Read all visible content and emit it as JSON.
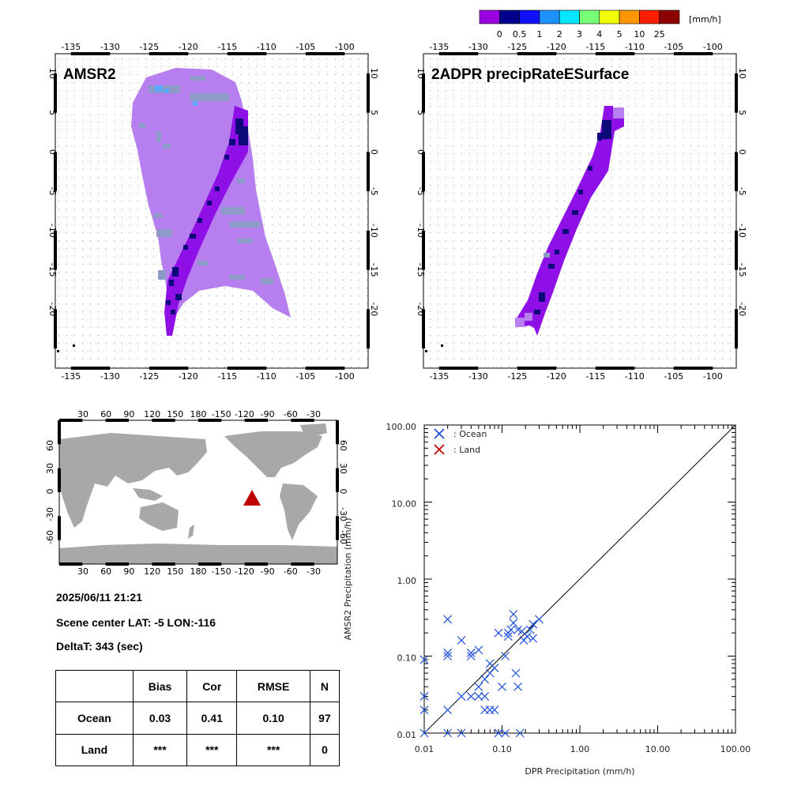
{
  "colorbar": {
    "unit": "[mm/h]",
    "labels": [
      "0",
      "0.5",
      "1",
      "2",
      "3",
      "4",
      "5",
      "10",
      "25"
    ],
    "colors": [
      "#9a00e0",
      "#00008c",
      "#1010ff",
      "#1e90ff",
      "#00e6ff",
      "#78ff78",
      "#f0ff00",
      "#ff9600",
      "#ff1e00",
      "#8c0000"
    ]
  },
  "maps": [
    {
      "title": "AMSR2",
      "lon_ticks": [
        "-135",
        "-130",
        "-125",
        "-120",
        "-115",
        "-110",
        "-105",
        "-100"
      ],
      "lat_ticks": [
        "10",
        "5",
        "0",
        "-5",
        "-10",
        "-15",
        "-20"
      ]
    },
    {
      "title": "2ADPR precipRateESurface",
      "lon_ticks": [
        "-135",
        "-130",
        "-125",
        "-120",
        "-115",
        "-110",
        "-105",
        "-100"
      ],
      "lat_ticks": [
        "10",
        "5",
        "0",
        "-5",
        "-10",
        "-15",
        "-20"
      ]
    }
  ],
  "world_map": {
    "top_ticks": [
      "30",
      "60",
      "90",
      "120",
      "150",
      "180",
      "-150",
      "-120",
      "-90",
      "-60",
      "-30"
    ],
    "lat_ticks": [
      "60",
      "30",
      "0",
      "-30",
      "-60"
    ],
    "marker_color": "#c00000"
  },
  "info": {
    "datetime": "2025/06/11 21:21",
    "scene_center": "Scene center LAT: -5   LON:-116",
    "delta_t": "DeltaT:  343 (sec)"
  },
  "stats_table": {
    "headers": [
      "",
      "Bias",
      "Cor",
      "RMSE",
      "N"
    ],
    "rows": [
      [
        "Ocean",
        "0.03",
        "0.41",
        "0.10",
        "97"
      ],
      [
        "Land",
        "***",
        "***",
        "***",
        "0"
      ]
    ]
  },
  "chart_data": {
    "type": "scatter",
    "xlabel": "DPR Precipitation (mm/h)",
    "ylabel": "AMSR2 Precipitation (mm/h)",
    "xscale": "log",
    "yscale": "log",
    "xlim": [
      0.01,
      100
    ],
    "ylim": [
      0.01,
      100
    ],
    "tick_labels": [
      "0.01",
      "0.10",
      "1.00",
      "10.00",
      "100.00"
    ],
    "legend_position": "top-left",
    "one_to_one_line": true,
    "series": [
      {
        "name": ": Ocean",
        "color": "#1e50dc",
        "marker": "x",
        "points": [
          [
            0.01,
            0.09
          ],
          [
            0.01,
            0.03
          ],
          [
            0.01,
            0.02
          ],
          [
            0.01,
            0.01
          ],
          [
            0.02,
            0.3
          ],
          [
            0.02,
            0.11
          ],
          [
            0.02,
            0.1
          ],
          [
            0.02,
            0.02
          ],
          [
            0.02,
            0.01
          ],
          [
            0.03,
            0.16
          ],
          [
            0.03,
            0.03
          ],
          [
            0.03,
            0.01
          ],
          [
            0.04,
            0.11
          ],
          [
            0.04,
            0.1
          ],
          [
            0.04,
            0.03
          ],
          [
            0.05,
            0.12
          ],
          [
            0.05,
            0.04
          ],
          [
            0.05,
            0.03
          ],
          [
            0.06,
            0.05
          ],
          [
            0.06,
            0.03
          ],
          [
            0.06,
            0.02
          ],
          [
            0.07,
            0.08
          ],
          [
            0.07,
            0.06
          ],
          [
            0.07,
            0.02
          ],
          [
            0.08,
            0.07
          ],
          [
            0.08,
            0.02
          ],
          [
            0.09,
            0.2
          ],
          [
            0.09,
            0.01
          ],
          [
            0.1,
            0.04
          ],
          [
            0.11,
            0.1
          ],
          [
            0.11,
            0.01
          ],
          [
            0.12,
            0.18
          ],
          [
            0.13,
            0.22
          ],
          [
            0.14,
            0.35
          ],
          [
            0.14,
            0.27
          ],
          [
            0.15,
            0.06
          ],
          [
            0.16,
            0.04
          ],
          [
            0.17,
            0.01
          ],
          [
            0.18,
            0.21
          ],
          [
            0.19,
            0.16
          ],
          [
            0.21,
            0.18
          ],
          [
            0.23,
            0.22
          ],
          [
            0.25,
            0.26
          ],
          [
            0.25,
            0.17
          ],
          [
            0.3,
            0.3
          ],
          [
            0.12,
            0.2
          ],
          [
            0.16,
            0.22
          ]
        ]
      },
      {
        "name": ": Land",
        "color": "#c80000",
        "marker": "x",
        "points": []
      }
    ]
  }
}
